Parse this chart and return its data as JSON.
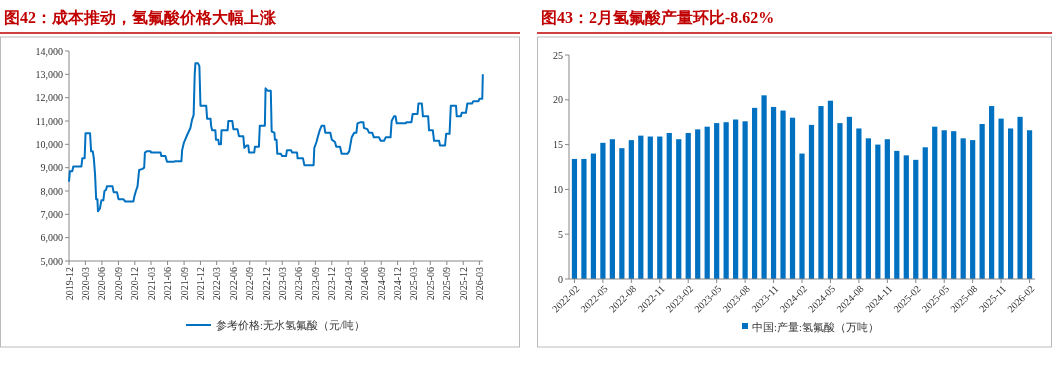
{
  "chart_data": [
    {
      "type": "line",
      "title": "图42：成本推动，氢氟酸价格大幅上涨",
      "legend": "bottom",
      "marker": "none",
      "line_style": "solid",
      "grid": false,
      "xlim": [
        "2019-12-01",
        "2026-03-21"
      ],
      "xticks": [
        "2019-12",
        "2020-03",
        "2020-06",
        "2020-09",
        "2020-12",
        "2021-03",
        "2021-06",
        "2021-09",
        "2021-12",
        "2022-03",
        "2022-06",
        "2022-09",
        "2022-12",
        "2023-03",
        "2023-06",
        "2023-09",
        "2023-12",
        "2024-03",
        "2024-06",
        "2024-09",
        "2024-12",
        "2025-03",
        "2025-06",
        "2025-09",
        "2025-12",
        "2026-03"
      ],
      "ylim": [
        5000,
        14000
      ],
      "yticks": [
        {
          "value": 5000,
          "label": "5,000"
        },
        {
          "value": 6000,
          "label": "6,000"
        },
        {
          "value": 7000,
          "label": "7,000"
        },
        {
          "value": 8000,
          "label": "8,000"
        },
        {
          "value": 9000,
          "label": "9,000"
        },
        {
          "value": 10000,
          "label": "10,000"
        },
        {
          "value": 11000,
          "label": "11,000"
        },
        {
          "value": 12000,
          "label": "12,000"
        },
        {
          "value": 13000,
          "label": "13,000"
        },
        {
          "value": 14000,
          "label": "14,000"
        }
      ],
      "series": [
        {
          "name": "参考价格:无水氢氟酸（元/吨）",
          "color": "#0070c0",
          "x": [
            "2019-12-01",
            "2019-12-06",
            "2019-12-19",
            "2019-12-25",
            "2020-02-08",
            "2020-02-13",
            "2020-02-26",
            "2020-03-02",
            "2020-03-27",
            "2020-04-02",
            "2020-04-11",
            "2020-04-17",
            "2020-04-24",
            "2020-04-30",
            "2020-05-07",
            "2020-05-10",
            "2020-05-21",
            "2020-05-29",
            "2020-06-09",
            "2020-06-15",
            "2020-06-24",
            "2020-06-29",
            "2020-07-30",
            "2020-08-05",
            "2020-08-24",
            "2020-09-01",
            "2020-09-28",
            "2020-10-09",
            "2020-11-23",
            "2020-11-28",
            "2020-12-07",
            "2020-12-16",
            "2020-12-25",
            "2021-01-13",
            "2021-01-22",
            "2021-01-26",
            "2021-02-05",
            "2021-02-27",
            "2021-03-02",
            "2021-04-23",
            "2021-04-27",
            "2021-05-20",
            "2021-05-29",
            "2021-07-05",
            "2021-07-11",
            "2021-08-17",
            "2021-08-21",
            "2021-08-30",
            "2021-09-18",
            "2021-10-06",
            "2021-10-15",
            "2021-10-24",
            "2021-10-30",
            "2021-11-03",
            "2021-11-17",
            "2021-11-25",
            "2021-12-01",
            "2022-01-02",
            "2022-01-07",
            "2022-01-26",
            "2022-01-29",
            "2022-02-04",
            "2022-02-22",
            "2022-02-25",
            "2022-03-10",
            "2022-03-14",
            "2022-03-25",
            "2022-03-28",
            "2022-05-01",
            "2022-05-05",
            "2022-05-27",
            "2022-06-02",
            "2022-06-25",
            "2022-07-03",
            "2022-07-27",
            "2022-08-02",
            "2022-08-15",
            "2022-08-24",
            "2022-08-28",
            "2022-09-26",
            "2022-09-30",
            "2022-10-22",
            "2022-10-27",
            "2022-11-24",
            "2022-11-28",
            "2022-12-09",
            "2022-12-27",
            "2023-01-01",
            "2023-01-16",
            "2023-01-19",
            "2023-01-28",
            "2023-02-01",
            "2023-02-21",
            "2023-02-28",
            "2023-03-22",
            "2023-03-27",
            "2023-04-19",
            "2023-04-24",
            "2023-05-22",
            "2023-05-25",
            "2023-06-24",
            "2023-07-02",
            "2023-08-22",
            "2023-08-26",
            "2023-09-07",
            "2023-09-14",
            "2023-09-25",
            "2023-10-06",
            "2023-10-20",
            "2023-10-26",
            "2023-11-23",
            "2023-12-01",
            "2023-12-19",
            "2023-12-26",
            "2024-01-16",
            "2024-01-25",
            "2024-02-27",
            "2024-03-07",
            "2024-03-21",
            "2024-04-04",
            "2024-04-16",
            "2024-04-22",
            "2024-05-10",
            "2024-05-25",
            "2024-05-28",
            "2024-06-16",
            "2024-06-25",
            "2024-07-13",
            "2024-07-22",
            "2024-08-20",
            "2024-08-29",
            "2024-09-17",
            "2024-09-26",
            "2024-10-23",
            "2024-10-29",
            "2024-11-11",
            "2024-11-20",
            "2024-11-26",
            "2025-01-15",
            "2025-01-20",
            "2025-02-16",
            "2025-02-23",
            "2025-03-22",
            "2025-03-27",
            "2025-04-15",
            "2025-04-21",
            "2025-05-20",
            "2025-05-25",
            "2025-06-15",
            "2025-06-22",
            "2025-07-20",
            "2025-07-25",
            "2025-08-22",
            "2025-08-28",
            "2025-09-16",
            "2025-09-23",
            "2025-10-22",
            "2025-10-26",
            "2025-11-17",
            "2025-11-23",
            "2025-12-16",
            "2025-12-24",
            "2026-01-19",
            "2026-01-26",
            "2026-02-24",
            "2026-03-01",
            "2026-03-17",
            "2026-03-20"
          ],
          "values": [
            8400,
            8850,
            8850,
            9050,
            9050,
            9400,
            9400,
            10480,
            10480,
            9700,
            9700,
            9400,
            8700,
            7650,
            7650,
            7130,
            7250,
            7600,
            7600,
            8000,
            8050,
            8200,
            8200,
            7950,
            7950,
            7650,
            7650,
            7550,
            7550,
            7750,
            8000,
            8200,
            8900,
            8950,
            9000,
            9650,
            9700,
            9700,
            9650,
            9650,
            9500,
            9500,
            9250,
            9250,
            9270,
            9270,
            9750,
            10050,
            10400,
            10700,
            11050,
            11250,
            13000,
            13480,
            13480,
            13350,
            11650,
            11650,
            11100,
            11100,
            10800,
            10600,
            10600,
            10200,
            10200,
            10000,
            10000,
            10600,
            10600,
            11000,
            11000,
            10650,
            10650,
            10350,
            10350,
            9850,
            9950,
            9950,
            9650,
            9650,
            9900,
            9900,
            10800,
            10800,
            12400,
            12300,
            12300,
            10550,
            10500,
            10200,
            10200,
            9600,
            9600,
            9500,
            9500,
            9750,
            9750,
            9650,
            9650,
            9400,
            9400,
            9100,
            9100,
            9850,
            10100,
            10300,
            10600,
            10800,
            10800,
            10500,
            10500,
            10200,
            10100,
            9900,
            9900,
            9600,
            9600,
            9700,
            10300,
            10500,
            10500,
            10900,
            10950,
            10950,
            10700,
            10650,
            10500,
            10500,
            10300,
            10300,
            10150,
            10150,
            10300,
            10300,
            11000,
            11200,
            11200,
            10900,
            10900,
            10950,
            10950,
            11300,
            11300,
            11750,
            11750,
            11200,
            11200,
            10600,
            10600,
            10150,
            10150,
            9950,
            9950,
            10450,
            10450,
            11650,
            11650,
            11200,
            11200,
            11350,
            11350,
            11750,
            11750,
            11850,
            11850,
            11950,
            11950,
            13000
          ]
        }
      ]
    },
    {
      "type": "bar",
      "title": "图43：2月氢氟酸产量环比-8.62%",
      "legend": "bottom",
      "grid": false,
      "categories": [
        "2022-02",
        null,
        null,
        "2022-05",
        null,
        null,
        "2022-08",
        null,
        null,
        "2022-11",
        null,
        null,
        "2023-02",
        null,
        null,
        "2023-05",
        null,
        null,
        "2023-08",
        null,
        null,
        "2023-11",
        null,
        null,
        "2024-02",
        null,
        null,
        "2024-05",
        null,
        null,
        "2024-08",
        null,
        null,
        "2024-11",
        null,
        null,
        "2025-02",
        null,
        null,
        "2025-05",
        null,
        null,
        "2025-08",
        null,
        null,
        "2025-11",
        null,
        null,
        "2026-02"
      ],
      "ylim": [
        0,
        25
      ],
      "yticks": [
        0,
        5,
        10,
        15,
        20,
        25
      ],
      "series": [
        {
          "name": "中国:产量:氢氟酸（万吨）",
          "color": "#0070c0",
          "values": [
            13.4,
            13.4,
            14.0,
            15.2,
            15.6,
            14.6,
            15.5,
            16.0,
            15.9,
            15.9,
            16.3,
            15.6,
            16.3,
            16.7,
            17.0,
            17.4,
            17.5,
            17.8,
            17.6,
            19.1,
            20.5,
            19.2,
            18.8,
            18.0,
            14.0,
            17.2,
            19.3,
            19.9,
            17.4,
            18.1,
            16.8,
            15.7,
            15.0,
            15.6,
            14.3,
            13.8,
            13.3,
            14.7,
            17.0,
            16.6,
            16.5,
            15.7,
            15.5,
            17.3,
            19.3,
            17.9,
            16.8,
            18.1,
            16.6
          ]
        }
      ]
    }
  ]
}
